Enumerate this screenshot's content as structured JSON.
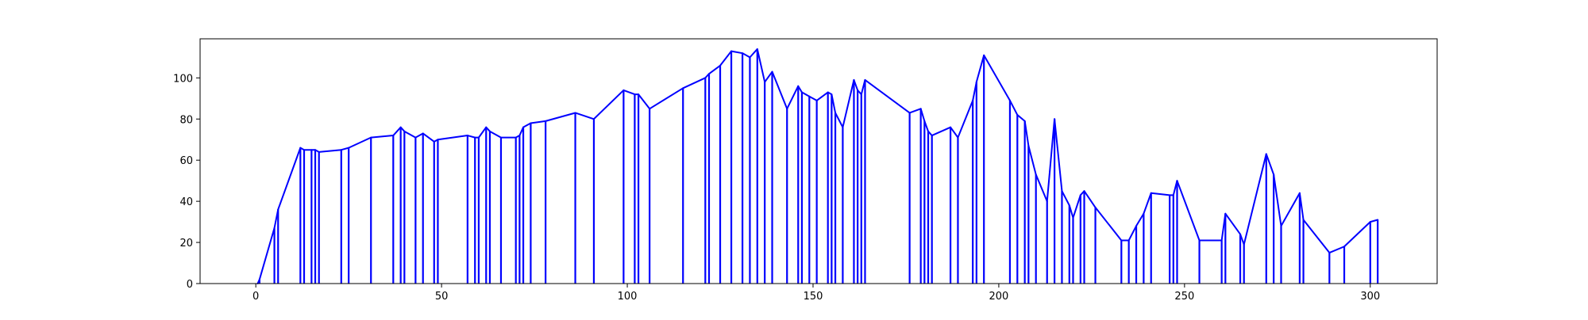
{
  "chart_data": {
    "type": "line",
    "title": "",
    "xlabel": "",
    "ylabel": "",
    "xlim": [
      -15,
      318
    ],
    "ylim": [
      0,
      119
    ],
    "xticks": [
      0,
      50,
      100,
      150,
      200,
      250,
      300
    ],
    "yticks": [
      0,
      20,
      40,
      60,
      80,
      100
    ],
    "grid": false,
    "line_color": "#0000ff",
    "stems_to_zero": true,
    "series": [
      {
        "values": [
          [
            0.5,
            0
          ],
          [
            1,
            2
          ],
          [
            5,
            27
          ],
          [
            6,
            36
          ],
          [
            12,
            66
          ],
          [
            13,
            65
          ],
          [
            15,
            65
          ],
          [
            16,
            65
          ],
          [
            17,
            64
          ],
          [
            23,
            65
          ],
          [
            25,
            66
          ],
          [
            31,
            71
          ],
          [
            37,
            72
          ],
          [
            39,
            76
          ],
          [
            40,
            74
          ],
          [
            43,
            71
          ],
          [
            45,
            73
          ],
          [
            48,
            69
          ],
          [
            49,
            70
          ],
          [
            57,
            72
          ],
          [
            59,
            71
          ],
          [
            60,
            71
          ],
          [
            62,
            76
          ],
          [
            63,
            74
          ],
          [
            66,
            71
          ],
          [
            70,
            71
          ],
          [
            71,
            72
          ],
          [
            72,
            76
          ],
          [
            74,
            78
          ],
          [
            78,
            79
          ],
          [
            86,
            83
          ],
          [
            91,
            80
          ],
          [
            99,
            94
          ],
          [
            102,
            92
          ],
          [
            103,
            92
          ],
          [
            106,
            85
          ],
          [
            115,
            95
          ],
          [
            121,
            100
          ],
          [
            122,
            102
          ],
          [
            125,
            106
          ],
          [
            128,
            113
          ],
          [
            131,
            112
          ],
          [
            133,
            110
          ],
          [
            135,
            114
          ],
          [
            137,
            98
          ],
          [
            139,
            103
          ],
          [
            143,
            85
          ],
          [
            146,
            96
          ],
          [
            147,
            93
          ],
          [
            149,
            91
          ],
          [
            151,
            89
          ],
          [
            154,
            93
          ],
          [
            155,
            92
          ],
          [
            156,
            83
          ],
          [
            158,
            76
          ],
          [
            161,
            99
          ],
          [
            162,
            94
          ],
          [
            163,
            92
          ],
          [
            164,
            99
          ],
          [
            176,
            83
          ],
          [
            179,
            85
          ],
          [
            180,
            79
          ],
          [
            181,
            74
          ],
          [
            182,
            72
          ],
          [
            187,
            76
          ],
          [
            189,
            71
          ],
          [
            193,
            89
          ],
          [
            194,
            98
          ],
          [
            196,
            111
          ],
          [
            203,
            89
          ],
          [
            205,
            82
          ],
          [
            207,
            79
          ],
          [
            208,
            67
          ],
          [
            210,
            53
          ],
          [
            213,
            40
          ],
          [
            215,
            80
          ],
          [
            217,
            45
          ],
          [
            219,
            38
          ],
          [
            220,
            32
          ],
          [
            222,
            43
          ],
          [
            223,
            45
          ],
          [
            226,
            37
          ],
          [
            233,
            21
          ],
          [
            235,
            21
          ],
          [
            237,
            28
          ],
          [
            239,
            34
          ],
          [
            241,
            44
          ],
          [
            246,
            43
          ],
          [
            247,
            43
          ],
          [
            248,
            50
          ],
          [
            254,
            21
          ],
          [
            260,
            21
          ],
          [
            261,
            34
          ],
          [
            265,
            24
          ],
          [
            266,
            19
          ],
          [
            272,
            63
          ],
          [
            274,
            53
          ],
          [
            276,
            28
          ],
          [
            281,
            44
          ],
          [
            282,
            31
          ],
          [
            289,
            15
          ],
          [
            293,
            18
          ],
          [
            300,
            30
          ],
          [
            302,
            31
          ]
        ]
      }
    ]
  }
}
